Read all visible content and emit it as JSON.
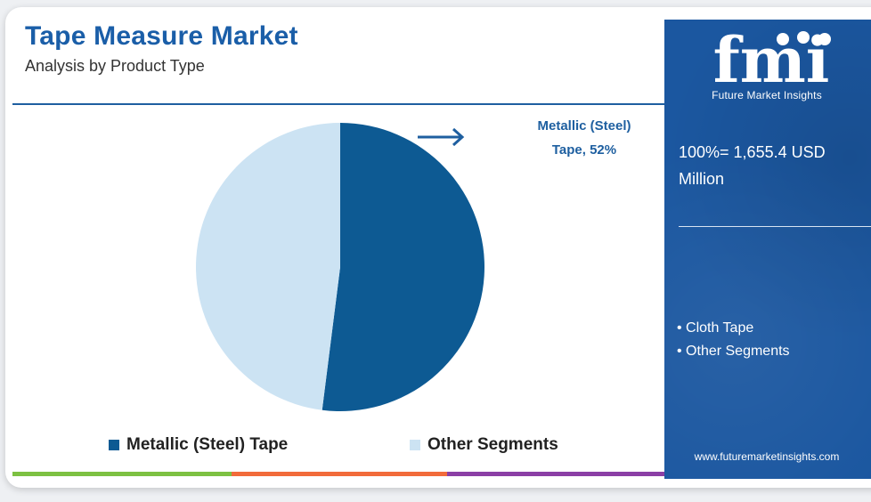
{
  "header": {
    "title": "Tape Measure Market",
    "subtitle": "Analysis by Product Type"
  },
  "callout": {
    "line1": "Metallic (Steel)",
    "line2": "Tape, 52%"
  },
  "legend": [
    {
      "label": "Metallic (Steel) Tape",
      "color": "#0d5a93"
    },
    {
      "label": "Other Segments",
      "color": "#cce3f3"
    }
  ],
  "side_panel": {
    "logo_text": "fmi",
    "logo_subtitle": "Future Market Insights",
    "total_line1": "100%= 1,655.4 USD",
    "total_line2": "Million",
    "segments": [
      "• Cloth Tape",
      "• Other Segments"
    ],
    "website": "www.futuremarketinsights.com",
    "background_color": "#1b57a0"
  },
  "bottom_bar_colors": [
    "#7dc142",
    "#f26b3a",
    "#8b3fa5"
  ],
  "chart_data": {
    "type": "pie",
    "title": "Tape Measure Market",
    "subtitle": "Analysis by Product Type",
    "categories": [
      "Metallic (Steel) Tape",
      "Other Segments"
    ],
    "values": [
      52,
      48
    ],
    "units": "%",
    "colors": [
      "#0d5a93",
      "#cce3f3"
    ],
    "legend_position": "bottom"
  }
}
